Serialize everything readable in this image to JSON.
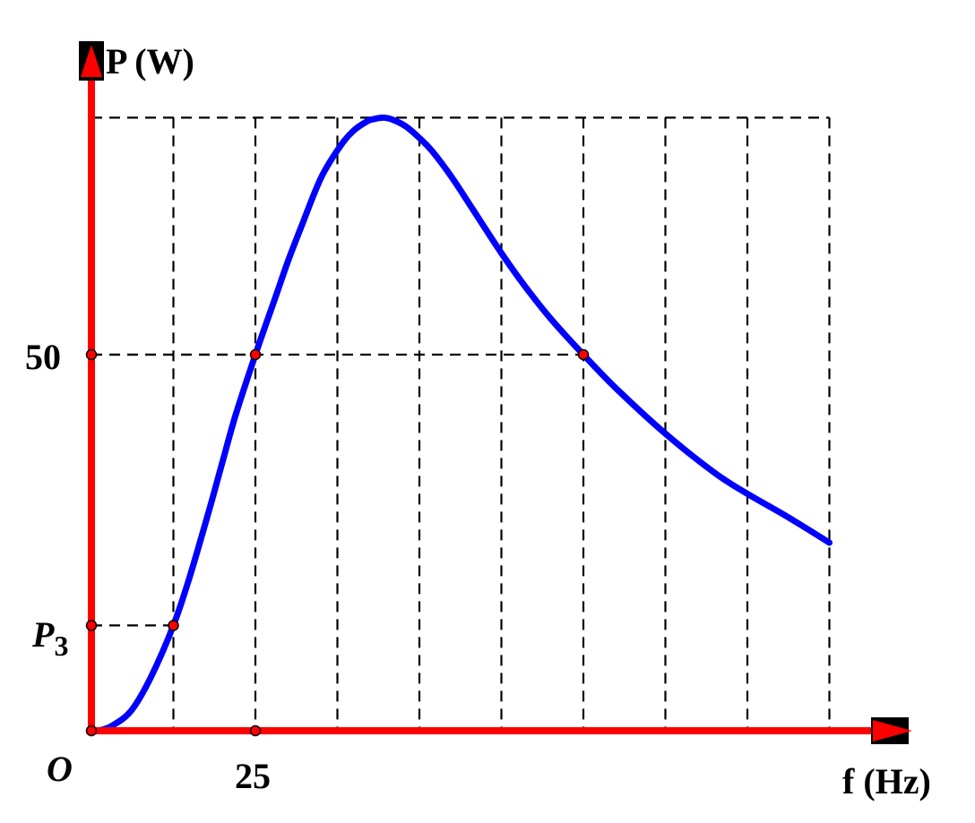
{
  "chart_data": {
    "type": "line",
    "ylabel": "P (W)",
    "xlabel": "f (Hz)",
    "origin_label": "O",
    "x_tick_labels": [
      {
        "x": 25,
        "text": "25"
      }
    ],
    "y_tick_labels": [
      {
        "y": 50,
        "text": "50"
      },
      {
        "y": 19.2,
        "text": "P3"
      }
    ],
    "xlim": [
      0,
      112.5
    ],
    "ylim": [
      0,
      80
    ],
    "grid": {
      "x_lines": [
        12.5,
        25,
        37.5,
        50,
        62.5,
        75,
        87.5,
        100,
        112.5
      ],
      "top_y": 81.5
    },
    "series": [
      {
        "color": "#0000ff",
        "x": [
          1,
          3,
          6,
          9,
          12.5,
          15,
          18,
          20,
          22,
          25,
          28,
          30,
          32,
          35,
          38,
          40,
          42,
          43,
          44.5,
          46,
          48,
          50,
          52,
          55,
          58,
          62.5,
          66,
          70,
          75,
          80,
          87.5,
          95,
          100,
          106,
          112.5
        ],
        "y": [
          0,
          0.6,
          2.6,
          7.0,
          14.0,
          20.5,
          29.5,
          35.8,
          42.0,
          50.0,
          57.5,
          62.5,
          67.0,
          73.5,
          77.8,
          79.8,
          81.0,
          81.3,
          81.5,
          81.2,
          80.3,
          78.8,
          77.0,
          73.5,
          69.5,
          63.5,
          59.2,
          54.8,
          50.0,
          45.5,
          39.5,
          34.3,
          31.5,
          28.5,
          25.0
        ]
      }
    ],
    "marked_points": [
      {
        "x": 12.5,
        "y": 14.0,
        "guide_to_axis": true
      },
      {
        "x": 25,
        "y": 50,
        "guide_to_axis": true
      },
      {
        "x": 75,
        "y": 50,
        "guide_to_axis": true
      },
      {
        "x": 0,
        "y": 50
      },
      {
        "x": 0,
        "y": 14.0
      },
      {
        "x": 0,
        "y": 0
      },
      {
        "x": 25,
        "y": 0
      }
    ],
    "colors": {
      "axes": "#ff0000",
      "curve": "#0000ff",
      "grid": "#000000",
      "points": "#ff0000"
    }
  }
}
